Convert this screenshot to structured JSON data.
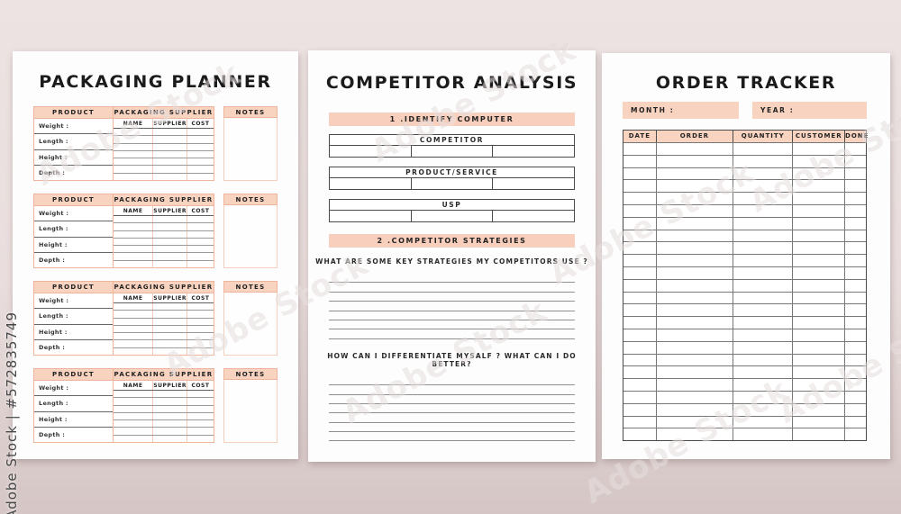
{
  "stock_watermark": {
    "brand": "Adobe Stock",
    "id_label": "Adobe Stock | #572835749"
  },
  "colors": {
    "accent": "#f8d3c0",
    "accent_border": "#eeb49c",
    "page": "#fdfdfd",
    "text": "#1f1f1f"
  },
  "packaging_planner": {
    "title": "PACKAGING PLANNER",
    "section_count": 4,
    "section": {
      "product_header": "PRODUCT",
      "fields": [
        "Weight :",
        "Length :",
        "Height :",
        "Depth :"
      ],
      "supplier_header": "PACKAGING SUPPLIER",
      "supplier_columns": [
        "NAME",
        "SUPPLIER",
        "COST"
      ],
      "supplier_row_count": 7,
      "notes_header": "NOTES"
    }
  },
  "competitor_analysis": {
    "title": "COMPETITOR ANALYSIS",
    "section1_header": "1 .IDENTIFY COMPUTER",
    "boxes": [
      {
        "label": "COMPETITOR",
        "cells": 3
      },
      {
        "label": "PRODUCT/SERVICE",
        "cells": 3
      },
      {
        "label": "USP",
        "cells": 3
      }
    ],
    "section2_header": "2 .COMPETITOR STRATEGIES",
    "questions": [
      {
        "text": "WHAT ARE SOME KEY STRATEGIES MY COMPETITORS USE ?",
        "lines": 7
      },
      {
        "text": "HOW CAN I DIFFERENTIATE MYSALF ? WHAT CAN I DO BETTER?",
        "lines": 7
      }
    ]
  },
  "order_tracker": {
    "title": "ORDER TRACKER",
    "month_label": "MONTH :",
    "year_label": "YEAR :",
    "columns": [
      "DATE",
      "ORDER",
      "QUANTITY",
      "CUSTOMER",
      "DONE"
    ],
    "row_count": 24
  }
}
